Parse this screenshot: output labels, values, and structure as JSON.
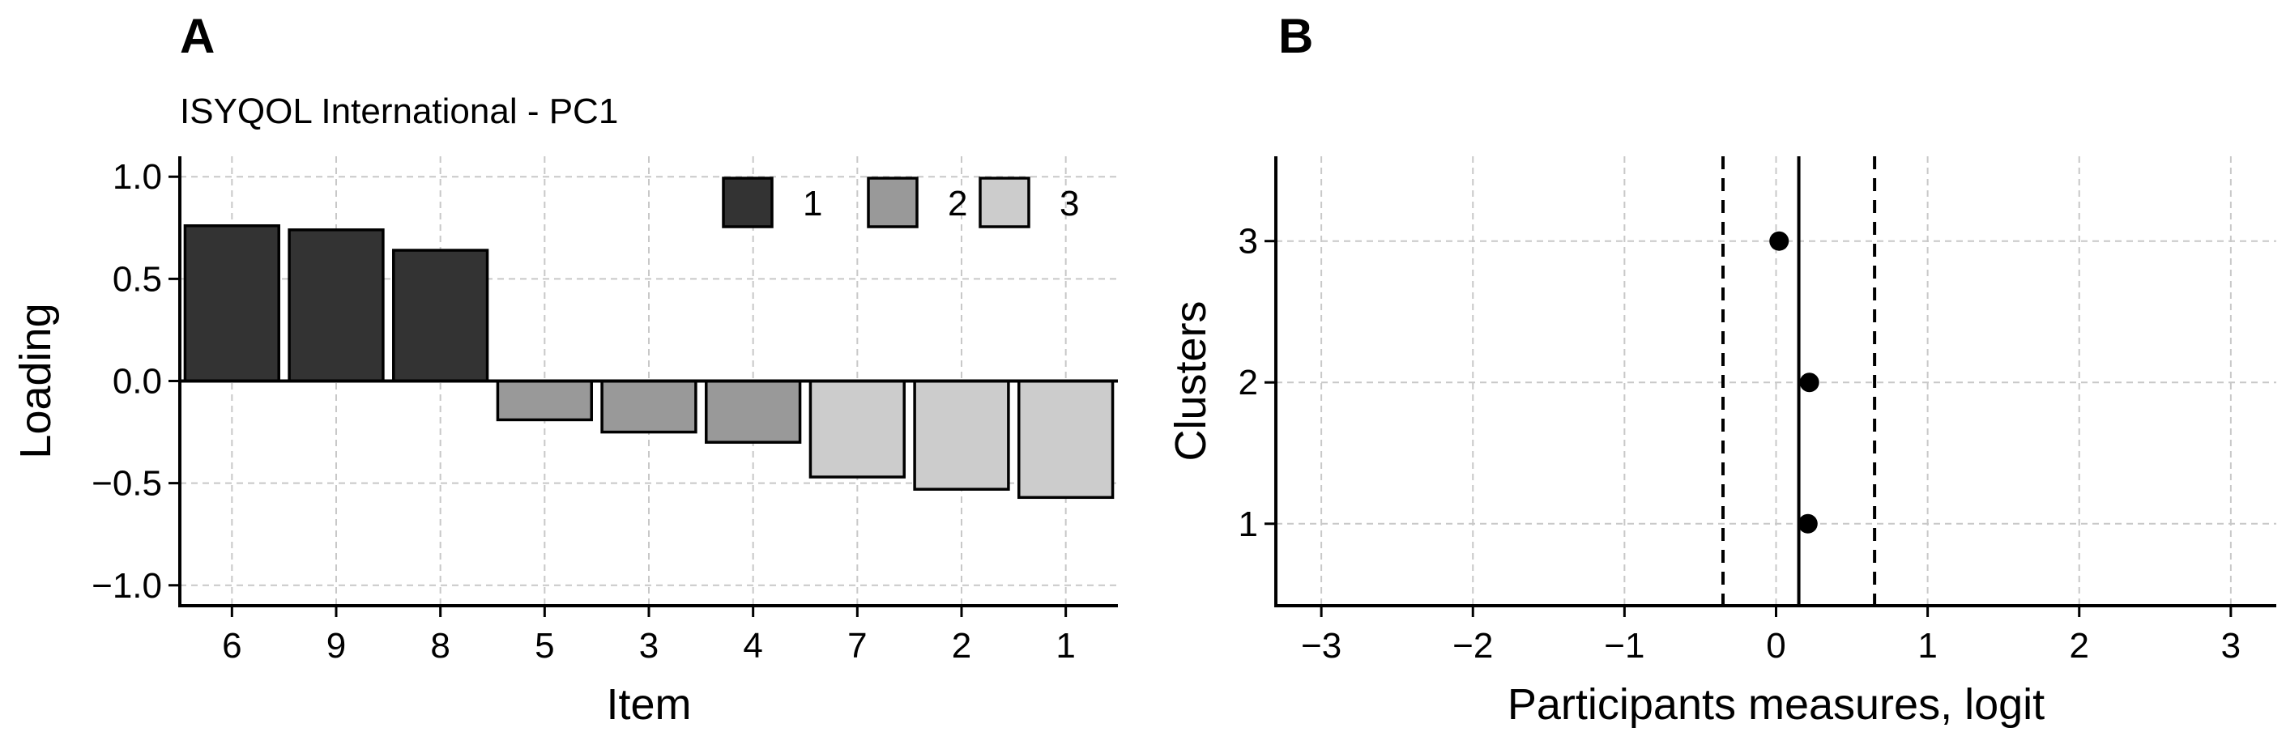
{
  "chart_data": [
    {
      "panel": "A",
      "type": "bar",
      "subtitle": "ISYQOL International - PC1",
      "xlabel": "Item",
      "ylabel": "Loading",
      "ylim": [
        -1.1,
        1.1
      ],
      "yticks": [
        {
          "value": 1.0,
          "label": "1.0"
        },
        {
          "value": 0.5,
          "label": "0.5"
        },
        {
          "value": 0.0,
          "label": "0.0"
        },
        {
          "value": -0.5,
          "label": "−0.5"
        },
        {
          "value": -1.0,
          "label": "−1.0"
        }
      ],
      "grid": true,
      "legend": {
        "placement": "top-right",
        "entries": [
          {
            "label": "1",
            "color": "#333333"
          },
          {
            "label": "2",
            "color": "#999999"
          },
          {
            "label": "3",
            "color": "#cccccc"
          }
        ]
      },
      "bars": [
        {
          "item": "6",
          "value": 0.76,
          "group": "1"
        },
        {
          "item": "9",
          "value": 0.74,
          "group": "1"
        },
        {
          "item": "8",
          "value": 0.64,
          "group": "1"
        },
        {
          "item": "5",
          "value": -0.19,
          "group": "2"
        },
        {
          "item": "3",
          "value": -0.25,
          "group": "2"
        },
        {
          "item": "4",
          "value": -0.3,
          "group": "2"
        },
        {
          "item": "7",
          "value": -0.47,
          "group": "3"
        },
        {
          "item": "2",
          "value": -0.53,
          "group": "3"
        },
        {
          "item": "1",
          "value": -0.57,
          "group": "3"
        }
      ]
    },
    {
      "panel": "B",
      "type": "scatter",
      "xlabel": "Participants measures, logit",
      "ylabel": "Clusters",
      "xlim": [
        -3.3,
        3.3
      ],
      "ylim": [
        0.42,
        3.6
      ],
      "xticks": [
        {
          "value": -3,
          "label": "−3"
        },
        {
          "value": -2,
          "label": "−2"
        },
        {
          "value": -1,
          "label": "−1"
        },
        {
          "value": 0,
          "label": "0"
        },
        {
          "value": 1,
          "label": "1"
        },
        {
          "value": 2,
          "label": "2"
        },
        {
          "value": 3,
          "label": "3"
        }
      ],
      "yticks": [
        {
          "value": 3,
          "label": "3"
        },
        {
          "value": 2,
          "label": "2"
        },
        {
          "value": 1,
          "label": "1"
        }
      ],
      "grid": true,
      "points": [
        {
          "cluster": 3,
          "x": 0.02
        },
        {
          "cluster": 2,
          "x": 0.22
        },
        {
          "cluster": 1,
          "x": 0.21
        }
      ],
      "reference_lines": [
        {
          "x": 0.15,
          "style": "solid"
        },
        {
          "x": -0.35,
          "style": "dashed"
        },
        {
          "x": 0.65,
          "style": "dashed"
        }
      ]
    }
  ]
}
